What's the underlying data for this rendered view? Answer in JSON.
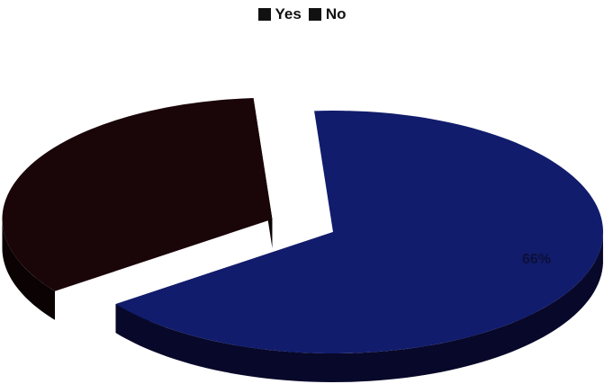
{
  "chart_data": {
    "type": "pie",
    "title": "",
    "categories": [
      "Yes",
      "No"
    ],
    "values": [
      66,
      34
    ],
    "data_labels": [
      "66%",
      ""
    ],
    "legend_position": "top",
    "three_d": true,
    "colors": {
      "Yes_top": "#111c6c",
      "Yes_side": "#08082a",
      "No_top": "#1a0508",
      "No_side": "#0a0203",
      "legend_swatch": "#111111",
      "label": "#0c1038"
    }
  }
}
